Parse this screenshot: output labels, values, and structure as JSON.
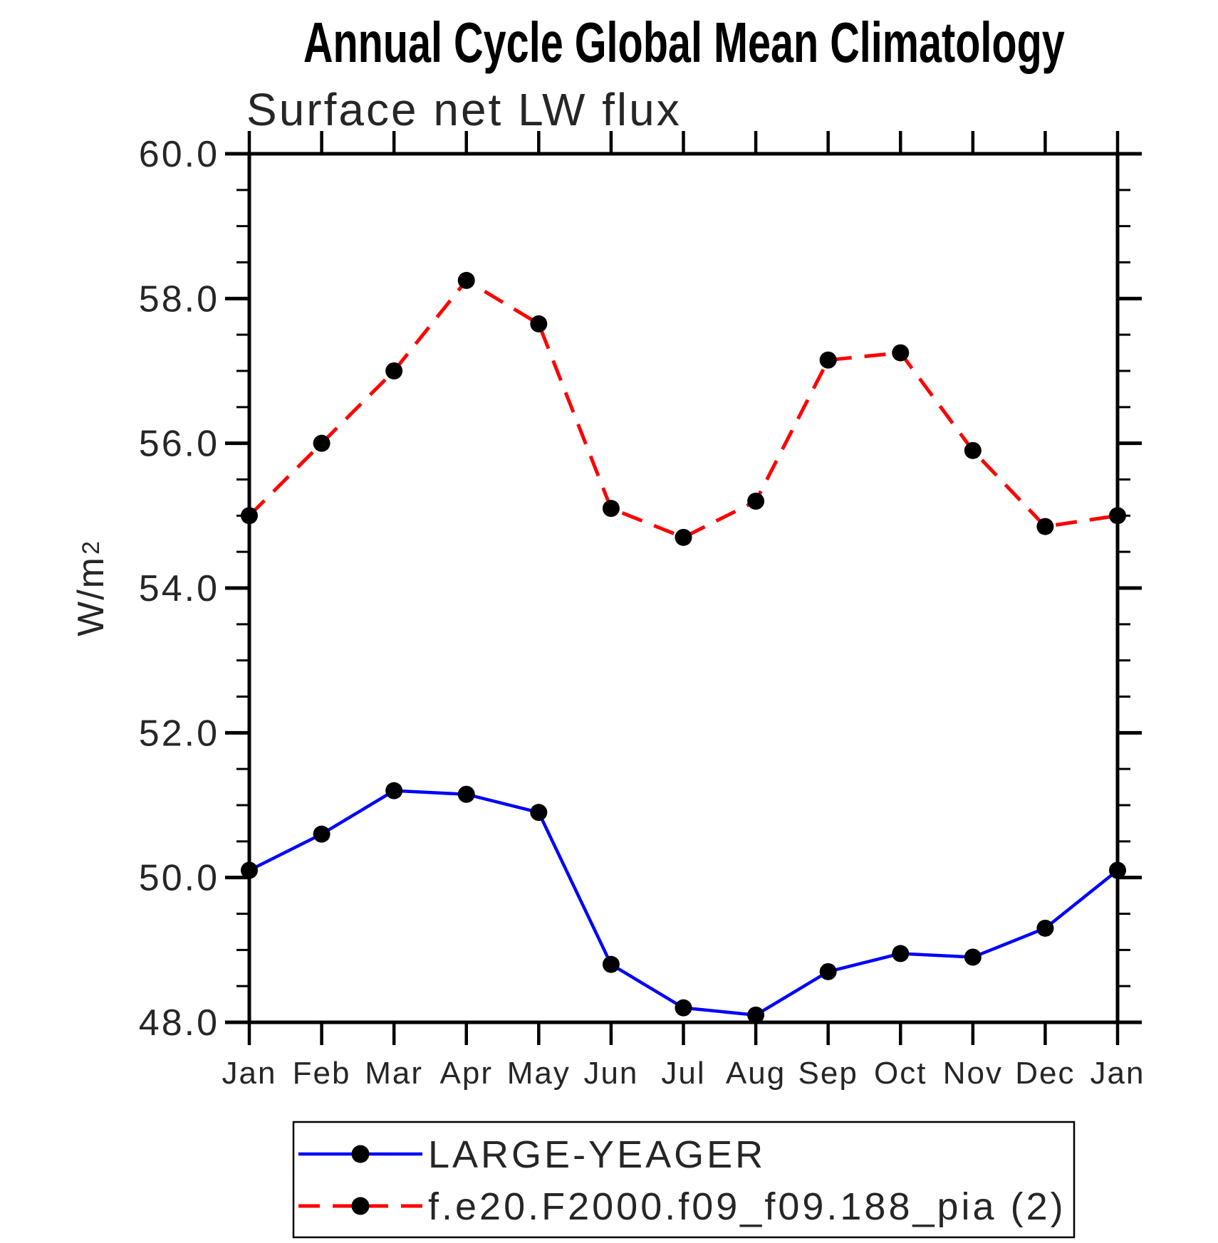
{
  "page": {
    "background": "#ffffff"
  },
  "title": "Annual Cycle Global Mean Climatology",
  "subtitle": "Surface net LW flux",
  "y_axis_title": {
    "base": "W/m",
    "exponent": "2"
  },
  "chart_data": {
    "type": "line",
    "title": "Annual Cycle Global Mean Climatology",
    "subtitle": "Surface net LW flux",
    "ylabel": "W/m^2",
    "xlabel": "",
    "ylim": [
      48.0,
      60.0
    ],
    "y_major_tick_step": 2.0,
    "y_minor_tick_step": 0.5,
    "grid": false,
    "legend_position": "bottom",
    "frame_color": "#000000",
    "categories": [
      "Jan",
      "Feb",
      "Mar",
      "Apr",
      "May",
      "Jun",
      "Jul",
      "Aug",
      "Sep",
      "Oct",
      "Nov",
      "Dec",
      "Jan"
    ],
    "y_axis": {
      "tick_values": [
        48,
        50,
        52,
        54,
        56,
        58,
        60
      ],
      "tick_labels": [
        "48.0",
        "50.0",
        "52.0",
        "54.0",
        "56.0",
        "58.0",
        "60.0"
      ]
    },
    "series": [
      {
        "name": "LARGE-YEAGER",
        "color": "#0000ff",
        "line_style": "solid",
        "marker": "filled-circle",
        "marker_color": "#000000",
        "values": [
          50.1,
          50.6,
          51.2,
          51.15,
          50.9,
          48.8,
          48.2,
          48.1,
          48.7,
          48.95,
          48.9,
          49.3,
          50.1
        ]
      },
      {
        "name": "f.e20.F2000.f09_f09.188_pia (2)",
        "color": "#ff0000",
        "line_style": "dashed",
        "marker": "filled-circle",
        "marker_color": "#000000",
        "values": [
          55.0,
          56.0,
          57.0,
          58.25,
          57.65,
          55.1,
          54.7,
          55.2,
          57.15,
          57.25,
          55.9,
          54.85,
          55.0
        ]
      }
    ]
  }
}
